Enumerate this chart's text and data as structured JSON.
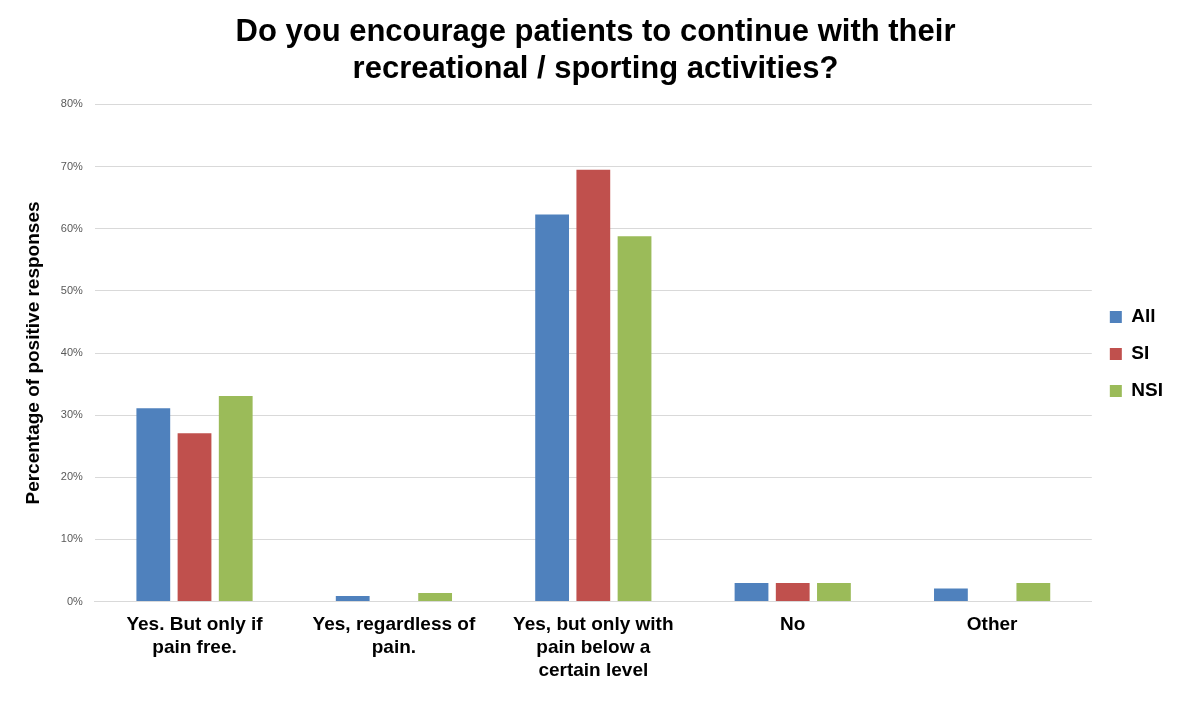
{
  "chart_data": {
    "type": "bar",
    "title": "Do you encourage patients to continue with their recreational / sporting activities?",
    "ylabel": "Percentage of positive responses",
    "categories": [
      "Yes. But only if pain free.",
      "Yes, regardless of pain.",
      "Yes, but only with pain below a certain level",
      "No",
      "Other"
    ],
    "series": [
      {
        "name": "All",
        "color": "#4f81bd",
        "values": [
          31.1,
          0.9,
          62.3,
          3.0,
          2.1
        ]
      },
      {
        "name": "SI",
        "color": "#c0504d",
        "values": [
          27.1,
          0,
          69.5,
          3.0,
          0
        ]
      },
      {
        "name": "NSI",
        "color": "#9bbb59",
        "values": [
          33.1,
          1.4,
          58.8,
          3.0,
          3.0
        ]
      }
    ],
    "ylim": [
      0,
      80
    ],
    "yticks": [
      {
        "value": 0,
        "label": "0%"
      },
      {
        "value": 10,
        "label": "10%"
      },
      {
        "value": 20,
        "label": "20%"
      },
      {
        "value": 30,
        "label": "30%"
      },
      {
        "value": 40,
        "label": "40%"
      },
      {
        "value": 50,
        "label": "50%"
      },
      {
        "value": 60,
        "label": "60%"
      },
      {
        "value": 70,
        "label": "70%"
      },
      {
        "value": 80,
        "label": "80%"
      }
    ],
    "grid": "y",
    "legend": "right"
  }
}
